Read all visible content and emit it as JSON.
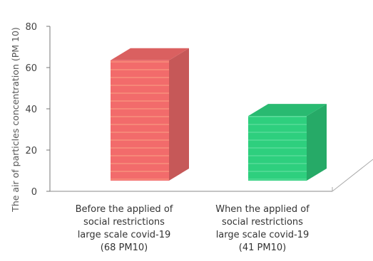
{
  "chart_data": {
    "type": "bar",
    "ylabel": "The air of particles concentration (PM 10)",
    "ylim": [
      0,
      80
    ],
    "yticks": [
      0,
      20,
      40,
      60,
      80
    ],
    "grid": false,
    "categories": [
      {
        "lines": [
          "Before  the applied of",
          "social restrictions",
          "large scale covid-19",
          "(68 PM10)"
        ],
        "value": 68,
        "color": "#f26b6b"
      },
      {
        "lines": [
          "When  the applied of",
          "social restrictions",
          "large scale covid-19",
          "(41 PM10)"
        ],
        "value": 41,
        "color": "#2ecf7e"
      }
    ]
  }
}
